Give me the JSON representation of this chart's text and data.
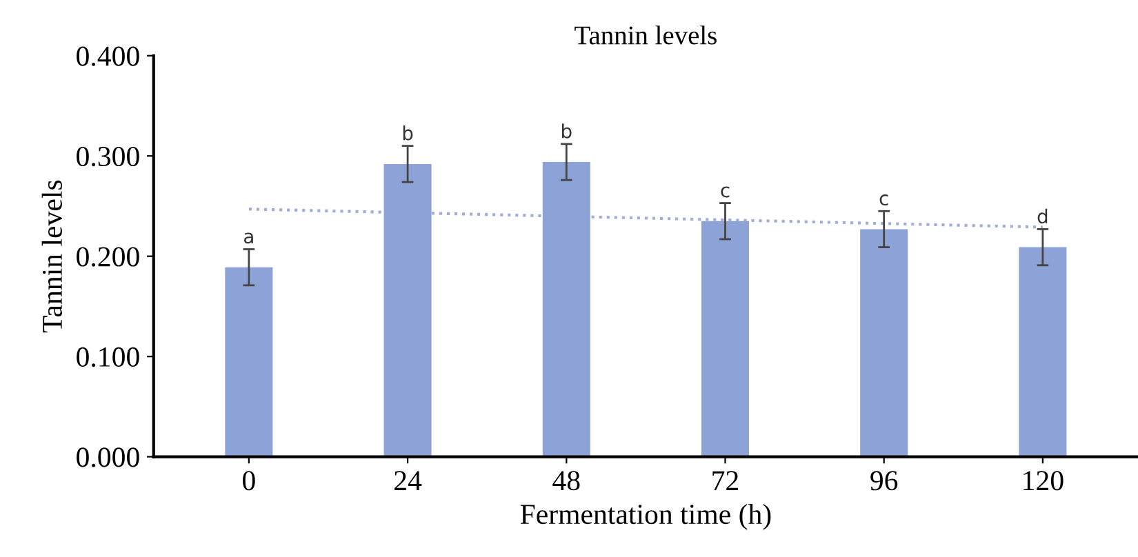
{
  "chart_data": {
    "type": "bar",
    "title": "Tannin levels",
    "xlabel": "Fermentation time (h)",
    "ylabel": "Tannin levels",
    "categories": [
      "0",
      "24",
      "48",
      "72",
      "96",
      "120"
    ],
    "series": [
      {
        "color": "#8da2d6",
        "values": [
          0.189,
          0.292,
          0.294,
          0.235,
          0.227,
          0.209
        ],
        "errors": [
          0.018,
          0.018,
          0.018,
          0.018,
          0.018,
          0.018
        ]
      },
      {
        "type": "line",
        "color": "#a0aed8",
        "line_style": "dotted",
        "x": [
          "0",
          "120"
        ],
        "values": [
          0.247,
          0.229
        ]
      }
    ],
    "annotations": [
      {
        "text": "a",
        "x": "0",
        "y": 0.207
      },
      {
        "text": "b",
        "x": "24",
        "y": 0.31
      },
      {
        "text": "b",
        "x": "48",
        "y": 0.312
      },
      {
        "text": "c",
        "x": "72",
        "y": 0.253
      },
      {
        "text": "c",
        "x": "96",
        "y": 0.245
      },
      {
        "text": "d",
        "x": "120",
        "y": 0.227
      }
    ],
    "ylim": [
      0,
      0.4
    ],
    "yticks": [
      {
        "value": 0,
        "label": "0.000"
      },
      {
        "value": 0.1,
        "label": "0.100"
      },
      {
        "value": 0.2,
        "label": "0.200"
      },
      {
        "value": 0.3,
        "label": "0.300"
      },
      {
        "value": 0.4,
        "label": "0.400"
      }
    ],
    "grid": false,
    "legend": false
  }
}
